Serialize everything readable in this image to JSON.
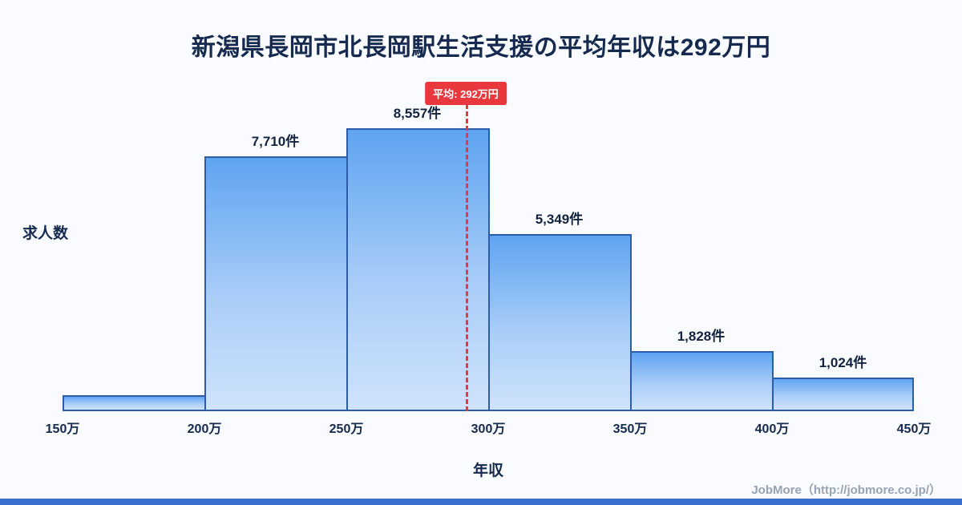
{
  "title": "新潟県長岡市北長岡駅生活支援の平均年収は292万円",
  "chart_data": {
    "type": "bar",
    "title": "新潟県長岡市北長岡駅生活支援の平均年収は292万円",
    "xlabel": "年収",
    "ylabel": "求人数",
    "x_ticks": [
      "150万",
      "200万",
      "250万",
      "300万",
      "350万",
      "400万",
      "450万"
    ],
    "x_range": [
      150,
      450
    ],
    "bin_width": 50,
    "bins": [
      [
        150,
        200
      ],
      [
        200,
        250
      ],
      [
        250,
        300
      ],
      [
        300,
        350
      ],
      [
        350,
        400
      ],
      [
        400,
        450
      ]
    ],
    "values": [
      480,
      7710,
      8557,
      5349,
      1828,
      1024
    ],
    "bar_labels": [
      "",
      "7,710件",
      "8,557件",
      "5,349件",
      "1,828件",
      "1,024件"
    ],
    "ylim": [
      0,
      10000
    ],
    "grid": false,
    "legend": false,
    "mean": {
      "value": 292,
      "label": "平均: 292万円"
    }
  },
  "footer": {
    "credit": "JobMore（http://jobmore.co.jp/）"
  },
  "colors": {
    "background": "#f9fbff",
    "bar_border": "#2d5ca8",
    "bar_gradient_top": "#5fa4f1",
    "bar_gradient_bottom": "#cfe3fc",
    "mean_accent": "#e8383d",
    "text": "#16294e",
    "footer_text": "#98a2b3",
    "bottom_strip": "#3c6ed2"
  }
}
